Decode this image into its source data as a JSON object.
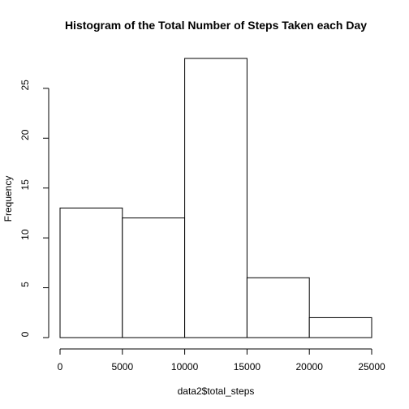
{
  "chart_data": {
    "type": "bar",
    "title": "Histogram of the Total Number of Steps Taken each Day",
    "xlabel": "data2$total_steps",
    "ylabel": "Frequency",
    "bins": [
      {
        "start": 0,
        "end": 5000,
        "count": 13
      },
      {
        "start": 5000,
        "end": 10000,
        "count": 12
      },
      {
        "start": 10000,
        "end": 15000,
        "count": 28
      },
      {
        "start": 15000,
        "end": 20000,
        "count": 6
      },
      {
        "start": 20000,
        "end": 25000,
        "count": 2
      }
    ],
    "x_ticks": [
      0,
      5000,
      10000,
      15000,
      20000,
      25000
    ],
    "x_tick_labels": [
      "0",
      "5000",
      "10000",
      "15000",
      "20000",
      "25000"
    ],
    "y_ticks": [
      0,
      5,
      10,
      15,
      20,
      25
    ],
    "y_tick_labels": [
      "0",
      "5",
      "10",
      "15",
      "20",
      "25"
    ],
    "xlim": [
      0,
      25000
    ],
    "ylim": [
      0,
      28
    ],
    "grid": false,
    "bar_fill": "#ffffff",
    "bar_stroke": "#000000"
  }
}
